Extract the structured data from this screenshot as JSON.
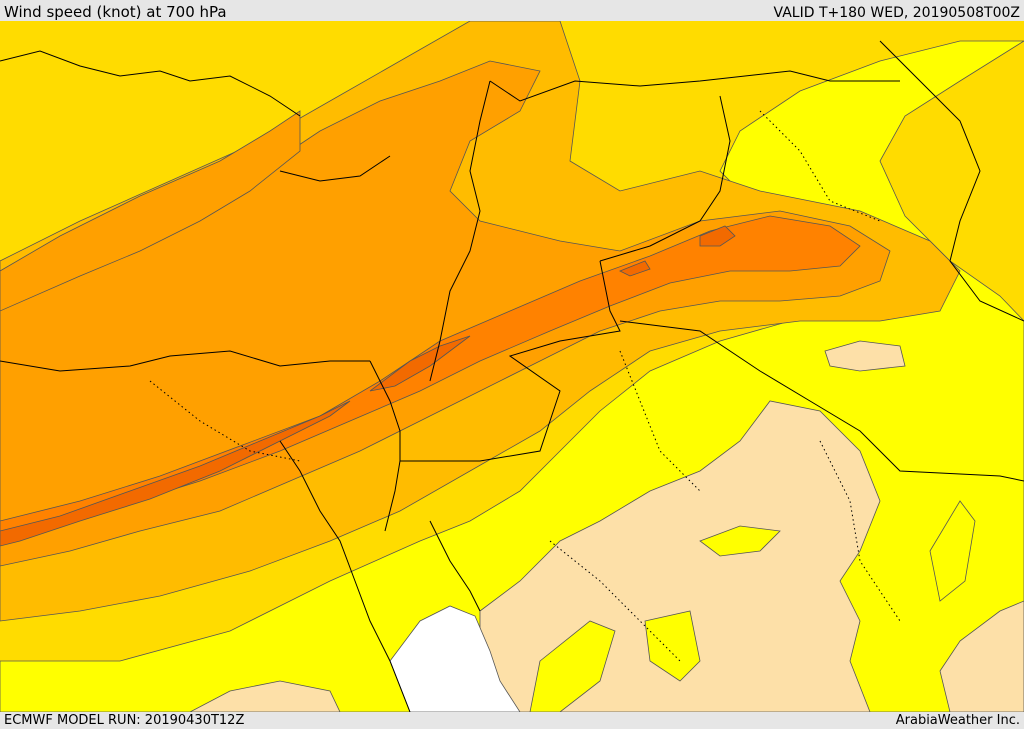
{
  "header": {
    "title": "Wind speed (knot) at 700 hPa",
    "valid": "VALID T+180 WED, 20190508T00Z"
  },
  "footer": {
    "model_run": "ECMWF MODEL RUN: 20190430T12Z",
    "credit": "ArabiaWeather Inc."
  },
  "map": {
    "colors": {
      "sea_no_data": "#ffffff",
      "band_lightest": "#fde0a8",
      "band_yellow": "#ffff00",
      "band_gold": "#ffdc00",
      "band_amber": "#ffbc00",
      "band_orange": "#ffa000",
      "band_dark_orange": "#ff8200",
      "band_darkest": "#f26a00",
      "contour_line": "#555555",
      "border_line": "#000000"
    }
  }
}
